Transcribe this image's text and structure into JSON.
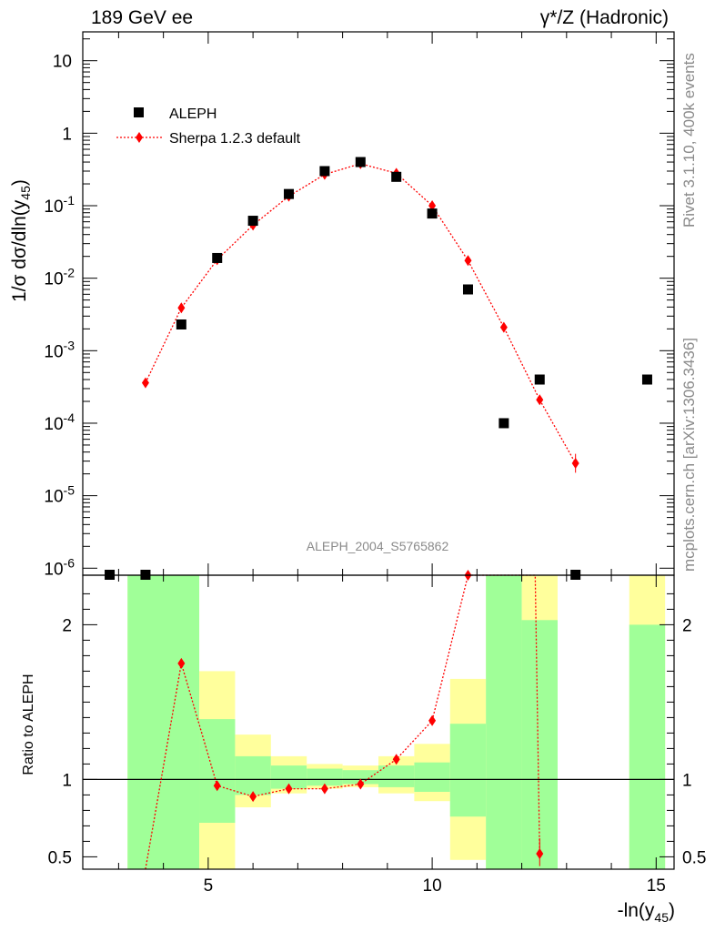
{
  "header": {
    "left_title": "189 GeV ee",
    "right_title": "γ*/Z (Hadronic)"
  },
  "side": {
    "rivet_label": "Rivet 3.1.10,  400k events",
    "mcplots_label": "mcplots.cern.ch [arXiv:1306.3436]"
  },
  "analysis_label": "ALEPH_2004_S5765862",
  "colors": {
    "data": "#000000",
    "mc": "#ff0000",
    "band_inner": "#a0ff98",
    "band_outer": "#ffff9c"
  },
  "chart_data": [
    {
      "type": "scatter",
      "name": "main",
      "yscale": "log",
      "ylabel": "1/σ  dσ/dln(y45)",
      "xlim": [
        2.2,
        15.4
      ],
      "ylim": [
        8e-07,
        25
      ],
      "ytick_labels": [
        "10",
        "1",
        "10^-1",
        "10^-2",
        "10^-3",
        "10^-4",
        "10^-5",
        "10^-6"
      ],
      "legend": [
        "ALEPH",
        "Sherpa 1.2.3 default"
      ],
      "legend_position": "top-left",
      "series": [
        {
          "name": "ALEPH",
          "marker": "square",
          "x": [
            2.8,
            3.6,
            4.4,
            5.2,
            6.0,
            6.8,
            7.6,
            8.4,
            9.2,
            10.0,
            10.8,
            11.6,
            12.4,
            13.2,
            14.8
          ],
          "y": [
            8e-07,
            8e-07,
            0.0023,
            0.019,
            0.062,
            0.145,
            0.3,
            0.4,
            0.25,
            0.078,
            0.007,
            0.0001,
            0.0004,
            8e-07,
            0.0004
          ]
        },
        {
          "name": "Sherpa 1.2.3 default",
          "marker": "diamond",
          "x": [
            3.6,
            4.4,
            5.2,
            6.0,
            6.8,
            7.6,
            8.4,
            9.2,
            10.0,
            10.8,
            11.6,
            12.4,
            13.2
          ],
          "y": [
            0.00036,
            0.0039,
            0.018,
            0.054,
            0.135,
            0.27,
            0.38,
            0.28,
            0.1,
            0.0175,
            0.0021,
            0.00021,
            2.8e-05
          ]
        }
      ]
    },
    {
      "type": "line",
      "name": "ratio",
      "ylabel": "Ratio to ALEPH",
      "xlabel": "-ln(y45)",
      "xlim": [
        2.2,
        15.4
      ],
      "ylim": [
        0.42,
        2.32
      ],
      "xtick_labels": [
        "5",
        "10",
        "15"
      ],
      "ytick_labels": [
        "0.5",
        "1",
        "2"
      ],
      "reference_line": 1,
      "bands": [
        {
          "x0": 3.2,
          "x1": 4.8,
          "inner": [
            0.42,
            2.32
          ],
          "outer": [
            0.42,
            2.32
          ]
        },
        {
          "x0": 4.8,
          "x1": 5.6,
          "inner": [
            0.72,
            1.39
          ],
          "outer": [
            0.42,
            1.7
          ]
        },
        {
          "x0": 5.6,
          "x1": 6.4,
          "inner": [
            0.9,
            1.15
          ],
          "outer": [
            0.82,
            1.29
          ]
        },
        {
          "x0": 6.4,
          "x1": 7.2,
          "inner": [
            0.94,
            1.09
          ],
          "outer": [
            0.91,
            1.15
          ]
        },
        {
          "x0": 7.2,
          "x1": 8.0,
          "inner": [
            0.96,
            1.07
          ],
          "outer": [
            0.94,
            1.1
          ]
        },
        {
          "x0": 8.0,
          "x1": 8.8,
          "inner": [
            0.97,
            1.06
          ],
          "outer": [
            0.95,
            1.09
          ]
        },
        {
          "x0": 8.8,
          "x1": 9.6,
          "inner": [
            0.95,
            1.09
          ],
          "outer": [
            0.91,
            1.15
          ]
        },
        {
          "x0": 9.6,
          "x1": 10.4,
          "inner": [
            0.92,
            1.11
          ],
          "outer": [
            0.86,
            1.23
          ]
        },
        {
          "x0": 10.4,
          "x1": 11.2,
          "inner": [
            0.76,
            1.36
          ],
          "outer": [
            0.48,
            1.65
          ]
        },
        {
          "x0": 11.2,
          "x1": 12.0,
          "inner": [
            0.42,
            2.32
          ],
          "outer": [
            0.42,
            2.32
          ]
        },
        {
          "x0": 12.0,
          "x1": 12.8,
          "inner": [
            0.42,
            2.03
          ],
          "outer": [
            0.42,
            2.32
          ]
        },
        {
          "x0": 14.4,
          "x1": 15.2,
          "inner": [
            0.42,
            2.0
          ],
          "outer": [
            0.42,
            2.32
          ]
        }
      ],
      "series": [
        {
          "name": "Sherpa 1.2.3 default",
          "x": [
            3.6,
            4.4,
            5.2,
            6.0,
            6.8,
            7.6,
            8.4,
            9.2,
            10.0,
            10.8,
            11.6,
            12.3,
            12.4
          ],
          "y": [
            0.42,
            1.75,
            0.96,
            0.89,
            0.94,
            0.94,
            0.97,
            1.13,
            1.38,
            2.32,
            2.32,
            2.32,
            0.52
          ],
          "markers": [
            false,
            true,
            true,
            true,
            true,
            true,
            true,
            true,
            true,
            true,
            false,
            false,
            true
          ]
        }
      ]
    }
  ]
}
